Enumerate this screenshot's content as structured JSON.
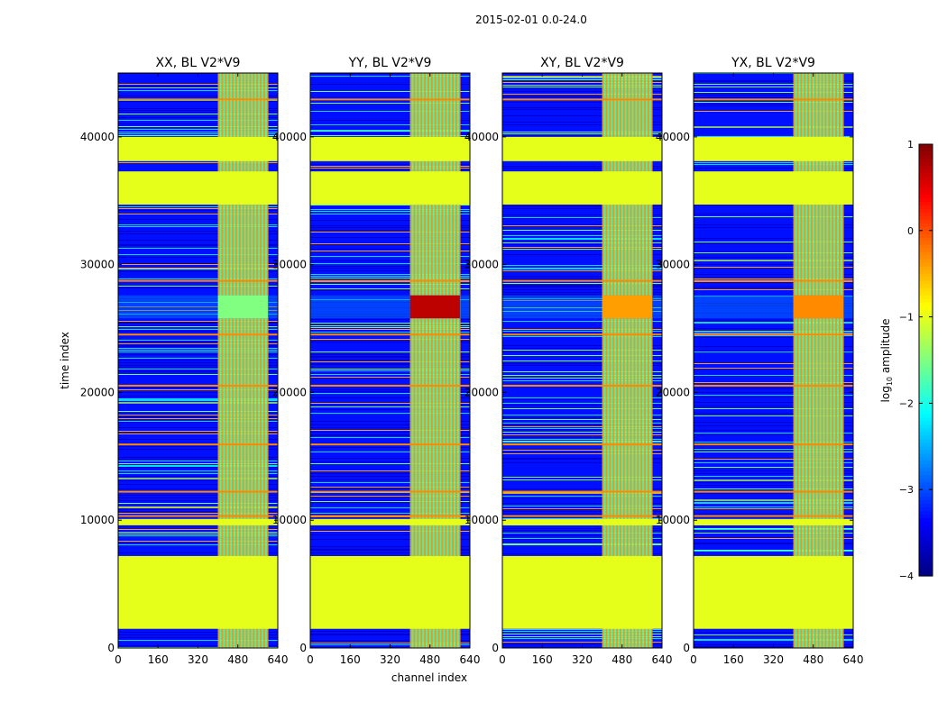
{
  "figure_title": "2015-02-01 0.0-24.0",
  "xlabel": "channel index",
  "ylabel": "time index",
  "colorbar": {
    "label_prefix": "log",
    "label_sub": "10",
    "label_suffix": " amplitude",
    "ticks": [
      {
        "value": 1,
        "label": "1"
      },
      {
        "value": 0,
        "label": "0"
      },
      {
        "value": -1,
        "label": "−1"
      },
      {
        "value": -2,
        "label": "−2"
      },
      {
        "value": -3,
        "label": "−3"
      },
      {
        "value": -4,
        "label": "−4"
      }
    ],
    "range": [
      -4,
      1
    ],
    "colormap": "jet"
  },
  "chart_data": {
    "type": "heatmap",
    "x_range": [
      0,
      640
    ],
    "y_range": [
      0,
      45000
    ],
    "x_ticks": [
      0,
      160,
      320,
      480,
      640
    ],
    "y_ticks": [
      0,
      10000,
      20000,
      30000,
      40000
    ],
    "panels": [
      {
        "title": "XX, BL V2*V9",
        "pol": "XX"
      },
      {
        "title": "YY, BL V2*V9",
        "pol": "YY"
      },
      {
        "title": "XY, BL V2*V9",
        "pol": "XY"
      },
      {
        "title": "YX, BL V2*V9",
        "pol": "YX"
      }
    ],
    "flagged_time_ranges": [
      [
        1500,
        7200
      ],
      [
        9600,
        10100
      ],
      [
        34700,
        37300
      ],
      [
        38100,
        40000
      ]
    ],
    "bright_channel_range": [
      400,
      600
    ],
    "background_log_amplitude": -3.3,
    "flagged_log_amplitude": -1.0
  }
}
